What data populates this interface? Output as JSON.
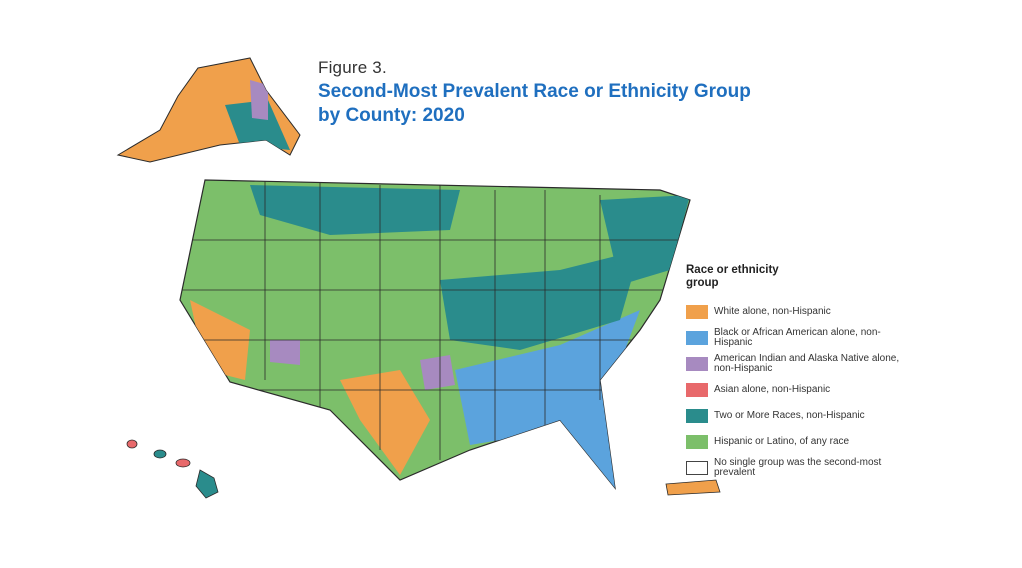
{
  "figure": {
    "label": "Figure 3.",
    "title_line1": "Second-Most Prevalent Race or Ethnicity Group",
    "title_line2": "by County: 2020"
  },
  "legend": {
    "title_line1": "Race or ethnicity",
    "title_line2": "group",
    "items": [
      {
        "key": "white",
        "label": "White alone, non-Hispanic",
        "color": "#f0a04b"
      },
      {
        "key": "black",
        "label": "Black or African American alone, non-Hispanic",
        "color": "#5ba3dd"
      },
      {
        "key": "aian",
        "label": "American Indian and Alaska Native alone, non-Hispanic",
        "color": "#a78ac0"
      },
      {
        "key": "asian",
        "label": "Asian alone, non-Hispanic",
        "color": "#e8696b"
      },
      {
        "key": "two",
        "label": "Two or More Races, non-Hispanic",
        "color": "#2a8c8c"
      },
      {
        "key": "hispanic",
        "label": "Hispanic or Latino, of any race",
        "color": "#7cbf6a"
      },
      {
        "key": "none",
        "label": "No single group was the second-most prevalent",
        "color": "#ffffff"
      }
    ]
  },
  "map": {
    "regions": [
      "contiguous-us",
      "alaska",
      "hawaii",
      "puerto-rico"
    ],
    "border_color": "#2b2b2b"
  }
}
